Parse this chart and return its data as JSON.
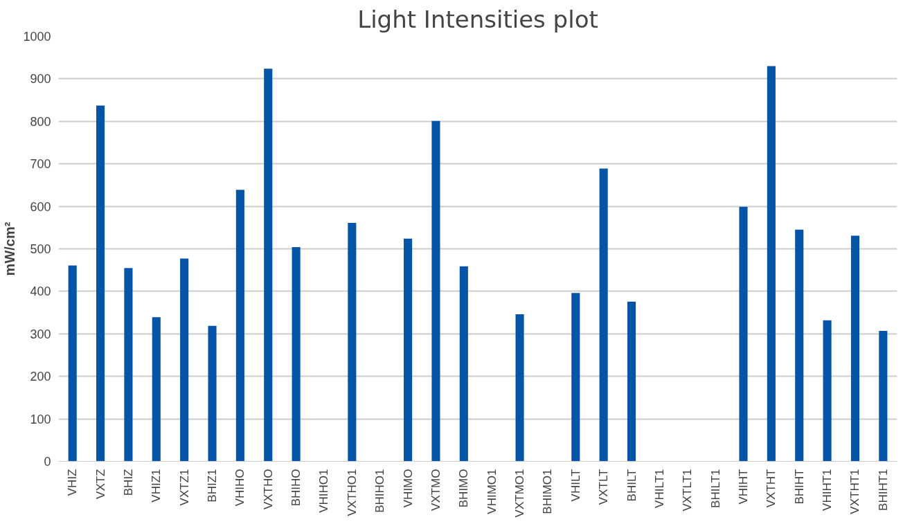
{
  "chart_data": {
    "type": "bar",
    "title": "Light Intensities plot",
    "ylabel": "mW/cm²",
    "categories": [
      "VHIZ",
      "VXTZ",
      "BHIZ",
      "VHIZ1",
      "VXTZ1",
      "BHIZ1",
      "VHIHO",
      "VXTHO",
      "BHIHO",
      "VHIHO1",
      "VXTHO1",
      "BHIHO1",
      "VHIMO",
      "VXTMO",
      "BHIMO",
      "VHIMO1",
      "VXTMO1",
      "BHIMO1",
      "VHILT",
      "VXTLT",
      "BHILT",
      "VHILT1",
      "VXTLT1",
      "BHILT1",
      "VHIHT",
      "VXTHT",
      "BHIHT",
      "VHIHT1",
      "VXTHT1",
      "BHIHT1"
    ],
    "values": [
      461,
      837,
      455,
      339,
      477,
      319,
      639,
      924,
      504,
      0,
      561,
      0,
      524,
      801,
      459,
      0,
      346,
      0,
      396,
      689,
      376,
      0,
      0,
      0,
      599,
      930,
      545,
      332,
      531,
      307
    ],
    "color": "#0554a8",
    "ylim": [
      0,
      1000
    ],
    "yticks": [
      0,
      100,
      200,
      300,
      400,
      500,
      600,
      700,
      800,
      900,
      1000
    ],
    "grid": "y"
  }
}
